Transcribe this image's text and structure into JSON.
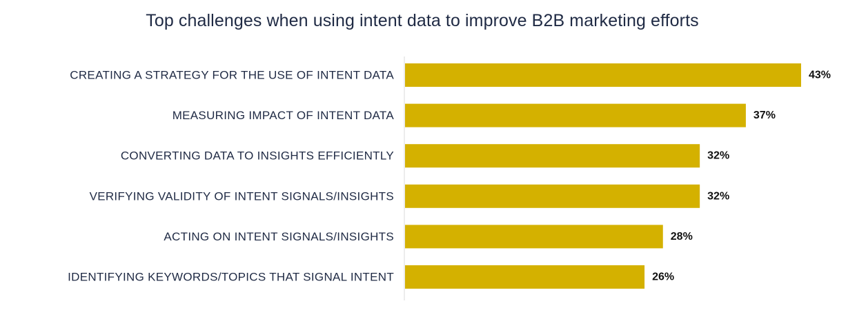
{
  "chart_data": {
    "type": "bar",
    "orientation": "horizontal",
    "title": "Top challenges when using intent data to improve B2B marketing efforts",
    "categories": [
      "CREATING A STRATEGY FOR THE USE OF INTENT DATA",
      "MEASURING IMPACT OF INTENT DATA",
      "CONVERTING DATA TO INSIGHTS EFFICIENTLY",
      "VERIFYING VALIDITY OF INTENT SIGNALS/INSIGHTS",
      "ACTING ON INTENT SIGNALS/INSIGHTS",
      "IDENTIFYING KEYWORDS/TOPICS THAT SIGNAL INTENT"
    ],
    "values": [
      43,
      37,
      32,
      32,
      28,
      26
    ],
    "value_labels": [
      "43%",
      "37%",
      "32%",
      "32%",
      "28%",
      "26%"
    ],
    "unit": "%",
    "xlim": [
      0,
      43
    ],
    "grid": false,
    "legend": "none",
    "bar_color": "#d4b100",
    "text_color": "#1f2a44"
  }
}
